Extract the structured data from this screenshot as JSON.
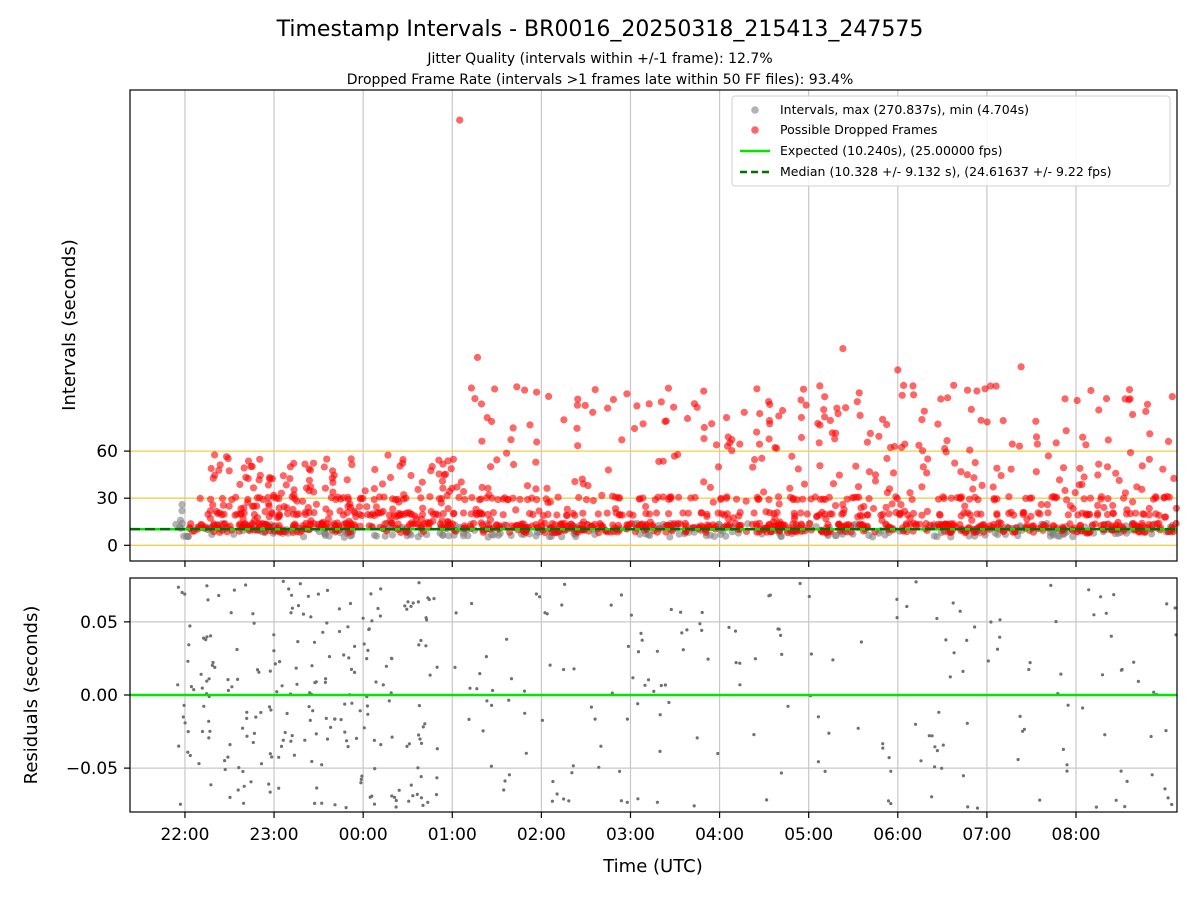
{
  "title": "Timestamp Intervals - BR0016_20250318_215413_247575",
  "subtitle_1": "Jitter Quality (intervals within +/-1 frame): 12.7%",
  "subtitle_2": "Dropped Frame Rate (intervals >1 frames late within 50 FF files): 93.4%",
  "colors": {
    "intervals": "#808080",
    "dropped": "#ff0000",
    "expected": "#00e600",
    "median": "#007000",
    "threshold_lines": "#f2cf4a",
    "grid": "#c8c8c8",
    "residuals": "#707070"
  },
  "chart_data": [
    {
      "type": "scatter",
      "ylabel": "Intervals (seconds)",
      "xlim": [
        "21:23",
        "09:08"
      ],
      "ylim": [
        -10,
        290
      ],
      "yticks": [
        0,
        30,
        60
      ],
      "grid": "vertical lines at hourly ticks",
      "legend_position": "upper right",
      "horizontal_lines": [
        0,
        30,
        60
      ],
      "series": [
        {
          "name": "Intervals, max (270.837s), min (4.704s)",
          "kind": "scatter"
        },
        {
          "name": "Possible Dropped Frames",
          "kind": "scatter"
        },
        {
          "name": "Expected (10.240s), (25.00000 fps)",
          "kind": "line",
          "value": 10.24
        },
        {
          "name": "Median (10.328 +/- 9.132 s), (24.61637 +/- 9.22 fps)",
          "kind": "dashed-line",
          "value": 10.328
        }
      ],
      "notable_points": [
        {
          "x": "01:05",
          "y": 270.8
        },
        {
          "x": "01:17",
          "y": 119.7
        },
        {
          "x": "05:23",
          "y": 125.3
        },
        {
          "x": "06:00",
          "y": 111.7
        },
        {
          "x": "07:23",
          "y": 113.7
        }
      ],
      "bands": [
        {
          "from": "21:52",
          "to": "01:04",
          "baseline": [
            8,
            14
          ],
          "scatter_max": 58
        },
        {
          "from": "01:04",
          "to": "09:08",
          "baseline": [
            8,
            14
          ],
          "scatter_max": 100
        }
      ]
    },
    {
      "type": "scatter",
      "xlabel": "Time (UTC)",
      "ylabel": "Residuals (seconds)",
      "xticks": [
        "22:00",
        "23:00",
        "00:00",
        "01:00",
        "02:00",
        "03:00",
        "04:00",
        "05:00",
        "06:00",
        "07:00",
        "08:00"
      ],
      "ylim": [
        -0.08,
        0.08
      ],
      "ytick_labels": [
        "0.05",
        "0.00",
        "−0.05"
      ],
      "ytick_values": [
        0.05,
        0.0,
        -0.05
      ],
      "grid": true,
      "reference_line": 0.0
    }
  ]
}
